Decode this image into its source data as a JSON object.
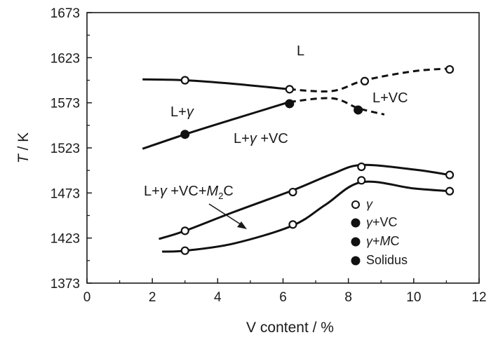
{
  "chart_data": {
    "type": "line",
    "xlabel": "V content / %",
    "ylabel": "T / K",
    "ylabel_italic": "T",
    "ylabel_rest": " / K",
    "xlim": [
      0,
      12
    ],
    "ylim": [
      1373,
      1673
    ],
    "x_ticks": [
      "0",
      "2",
      "4",
      "6",
      "8",
      "10",
      "12"
    ],
    "y_ticks": [
      "1373",
      "1423",
      "1473",
      "1523",
      "1573",
      "1623",
      "1673"
    ],
    "grid": false,
    "legend_position": "inside-right",
    "legend": [
      {
        "marker": "open-circle",
        "label": "γ"
      },
      {
        "marker": "filled-circle",
        "label": "γ+VC"
      },
      {
        "marker": "filled-circle",
        "label": "γ+MC"
      },
      {
        "marker": "filled-circle",
        "label": "Solidus"
      }
    ],
    "series": [
      {
        "marker": "open-circle",
        "style": "solid-then-dashed",
        "curve": [
          [
            1.7,
            1599
          ],
          [
            3,
            1598
          ],
          [
            4.5,
            1594
          ],
          [
            6.2,
            1588
          ],
          [
            7.5,
            1586
          ],
          [
            8.5,
            1598
          ],
          [
            10,
            1608
          ],
          [
            11.1,
            1611
          ]
        ],
        "points": [
          [
            3,
            1598
          ],
          [
            6.2,
            1588
          ],
          [
            8.5,
            1597
          ],
          [
            11.1,
            1610
          ]
        ]
      },
      {
        "marker": "filled-circle",
        "style": "solid-then-dashed",
        "curve": [
          [
            1.7,
            1522
          ],
          [
            3,
            1538
          ],
          [
            4.5,
            1555
          ],
          [
            6.2,
            1574
          ],
          [
            7.5,
            1578
          ],
          [
            8.3,
            1567
          ],
          [
            9.1,
            1560
          ]
        ],
        "points": [
          [
            3,
            1538
          ],
          [
            6.2,
            1572
          ],
          [
            8.3,
            1565
          ]
        ]
      },
      {
        "marker": "open-circle",
        "style": "solid",
        "curve": [
          [
            2.2,
            1422
          ],
          [
            3,
            1431
          ],
          [
            4.5,
            1452
          ],
          [
            6.3,
            1476
          ],
          [
            7.5,
            1494
          ],
          [
            8.4,
            1504
          ],
          [
            10,
            1499
          ],
          [
            11.1,
            1493
          ]
        ],
        "points": [
          [
            3,
            1431
          ],
          [
            6.3,
            1474
          ],
          [
            8.4,
            1502
          ],
          [
            11.1,
            1493
          ]
        ]
      },
      {
        "marker": "open-circle",
        "style": "solid",
        "curve": [
          [
            2.3,
            1408
          ],
          [
            3,
            1409
          ],
          [
            4.5,
            1417
          ],
          [
            6.3,
            1437
          ],
          [
            7.3,
            1460
          ],
          [
            8.4,
            1485
          ],
          [
            10,
            1478
          ],
          [
            11.1,
            1475
          ]
        ],
        "points": [
          [
            3,
            1409
          ],
          [
            6.3,
            1438
          ],
          [
            8.4,
            1487
          ],
          [
            11.1,
            1475
          ]
        ]
      }
    ],
    "annotations": [
      {
        "text": "L",
        "x": 6.6,
        "y": 1634
      },
      {
        "text": "L+VC",
        "x": 8.9,
        "y": 1580
      },
      {
        "text": "L+γ",
        "x": 2.6,
        "y": 1565
      },
      {
        "text": "L+γ +VC",
        "x": 4.5,
        "y": 1535
      },
      {
        "text": "L+γ +VC+M2C",
        "x": 3.6,
        "y": 1474
      }
    ],
    "region_labels": {
      "L": "L",
      "L_VC": "L+VC",
      "L_gamma_prefix": "L+",
      "gamma": "γ",
      "L_gamma_VC_prefix": "L+",
      "L_gamma_VC_suffix": " +VC",
      "L_gamma_VC_M2C_prefix": "L+",
      "L_gamma_VC_M2C_mid": " +VC+",
      "M": "M",
      "sub2": "2",
      "C": "C"
    },
    "legend_parts": {
      "plus_VC": "+VC",
      "plus": "+",
      "MC": "C",
      "M": "M",
      "solidus": "Solidus"
    }
  }
}
